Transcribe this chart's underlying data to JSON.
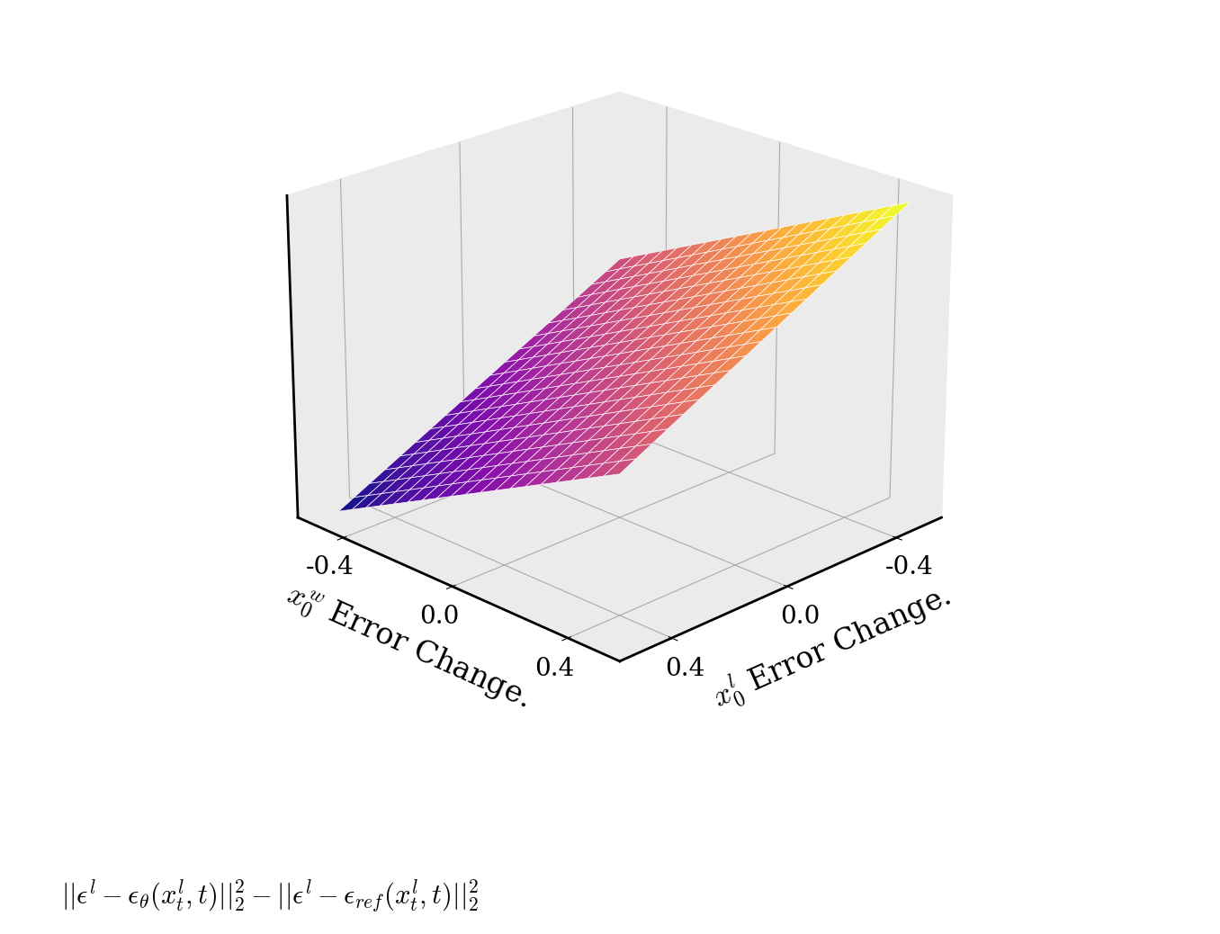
{
  "x_range": [
    -0.5,
    0.5
  ],
  "y_range": [
    -0.5,
    0.5
  ],
  "n_points": 20,
  "xlabel": "$x_0^l$ Error Change.",
  "ylabel": "$x_0^w$ Error Change.",
  "formula_label": "$||\\epsilon^l - \\epsilon_\\theta(x_t^l, t)||_2^2 - ||\\epsilon^l - \\epsilon_{ref}(x_t^l, t)||_2^2$",
  "colormap": "plasma",
  "surface_alpha": 0.95,
  "elev": 22,
  "azim": 45,
  "background_color": "#ffffff",
  "pane_color": [
    0.92,
    0.92,
    0.92,
    1.0
  ],
  "grid_color": "#aaaaaa",
  "tick_fontsize": 20,
  "label_fontsize": 24,
  "formula_fontsize": 22,
  "xticks": [
    0.4,
    0.0,
    -0.4
  ],
  "yticks": [
    0.4,
    0.0,
    -0.4
  ],
  "fig_width": 13.56,
  "fig_height": 10.38,
  "dpi": 100
}
